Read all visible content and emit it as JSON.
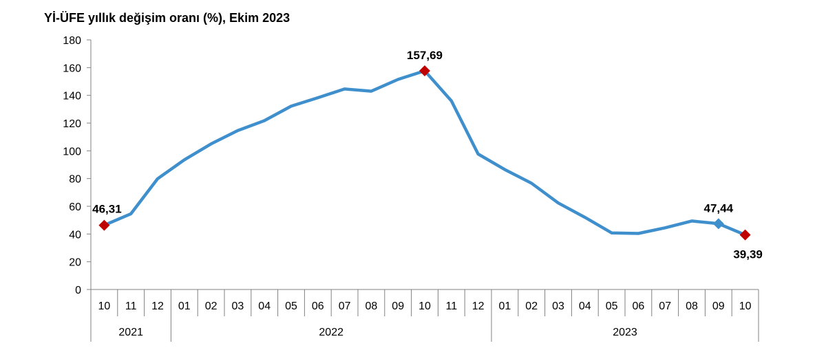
{
  "chart_data": {
    "type": "line",
    "title": "Yİ-ÜFE yıllık değişim oranı (%), Ekim 2023",
    "xlabel": "",
    "ylabel": "",
    "ylim": [
      0,
      180
    ],
    "yticks": [
      0,
      20,
      40,
      60,
      80,
      100,
      120,
      140,
      160,
      180
    ],
    "grid": false,
    "categories": [
      "10",
      "11",
      "12",
      "01",
      "02",
      "03",
      "04",
      "05",
      "06",
      "07",
      "08",
      "09",
      "10",
      "11",
      "12",
      "01",
      "02",
      "03",
      "04",
      "05",
      "06",
      "07",
      "08",
      "09",
      "10"
    ],
    "year_groups": [
      {
        "label": "2021",
        "count": 3
      },
      {
        "label": "2022",
        "count": 12
      },
      {
        "label": "2023",
        "count": 10
      }
    ],
    "series": [
      {
        "values": [
          46.31,
          54.6,
          79.9,
          93.5,
          105.0,
          114.6,
          121.8,
          132.2,
          138.3,
          144.6,
          143.0,
          151.5,
          157.69,
          136.0,
          97.7,
          86.5,
          76.6,
          62.4,
          52.0,
          40.8,
          40.4,
          44.5,
          49.4,
          47.44,
          39.39
        ],
        "color": "#3f8fcd"
      }
    ],
    "highlights": [
      {
        "index": 0,
        "label": "46,31",
        "color": "#c00000"
      },
      {
        "index": 12,
        "label": "157,69",
        "color": "#c00000"
      },
      {
        "index": 23,
        "label": "47,44",
        "color": "#3f8fcd"
      },
      {
        "index": 24,
        "label": "39,39",
        "color": "#c00000"
      }
    ]
  }
}
